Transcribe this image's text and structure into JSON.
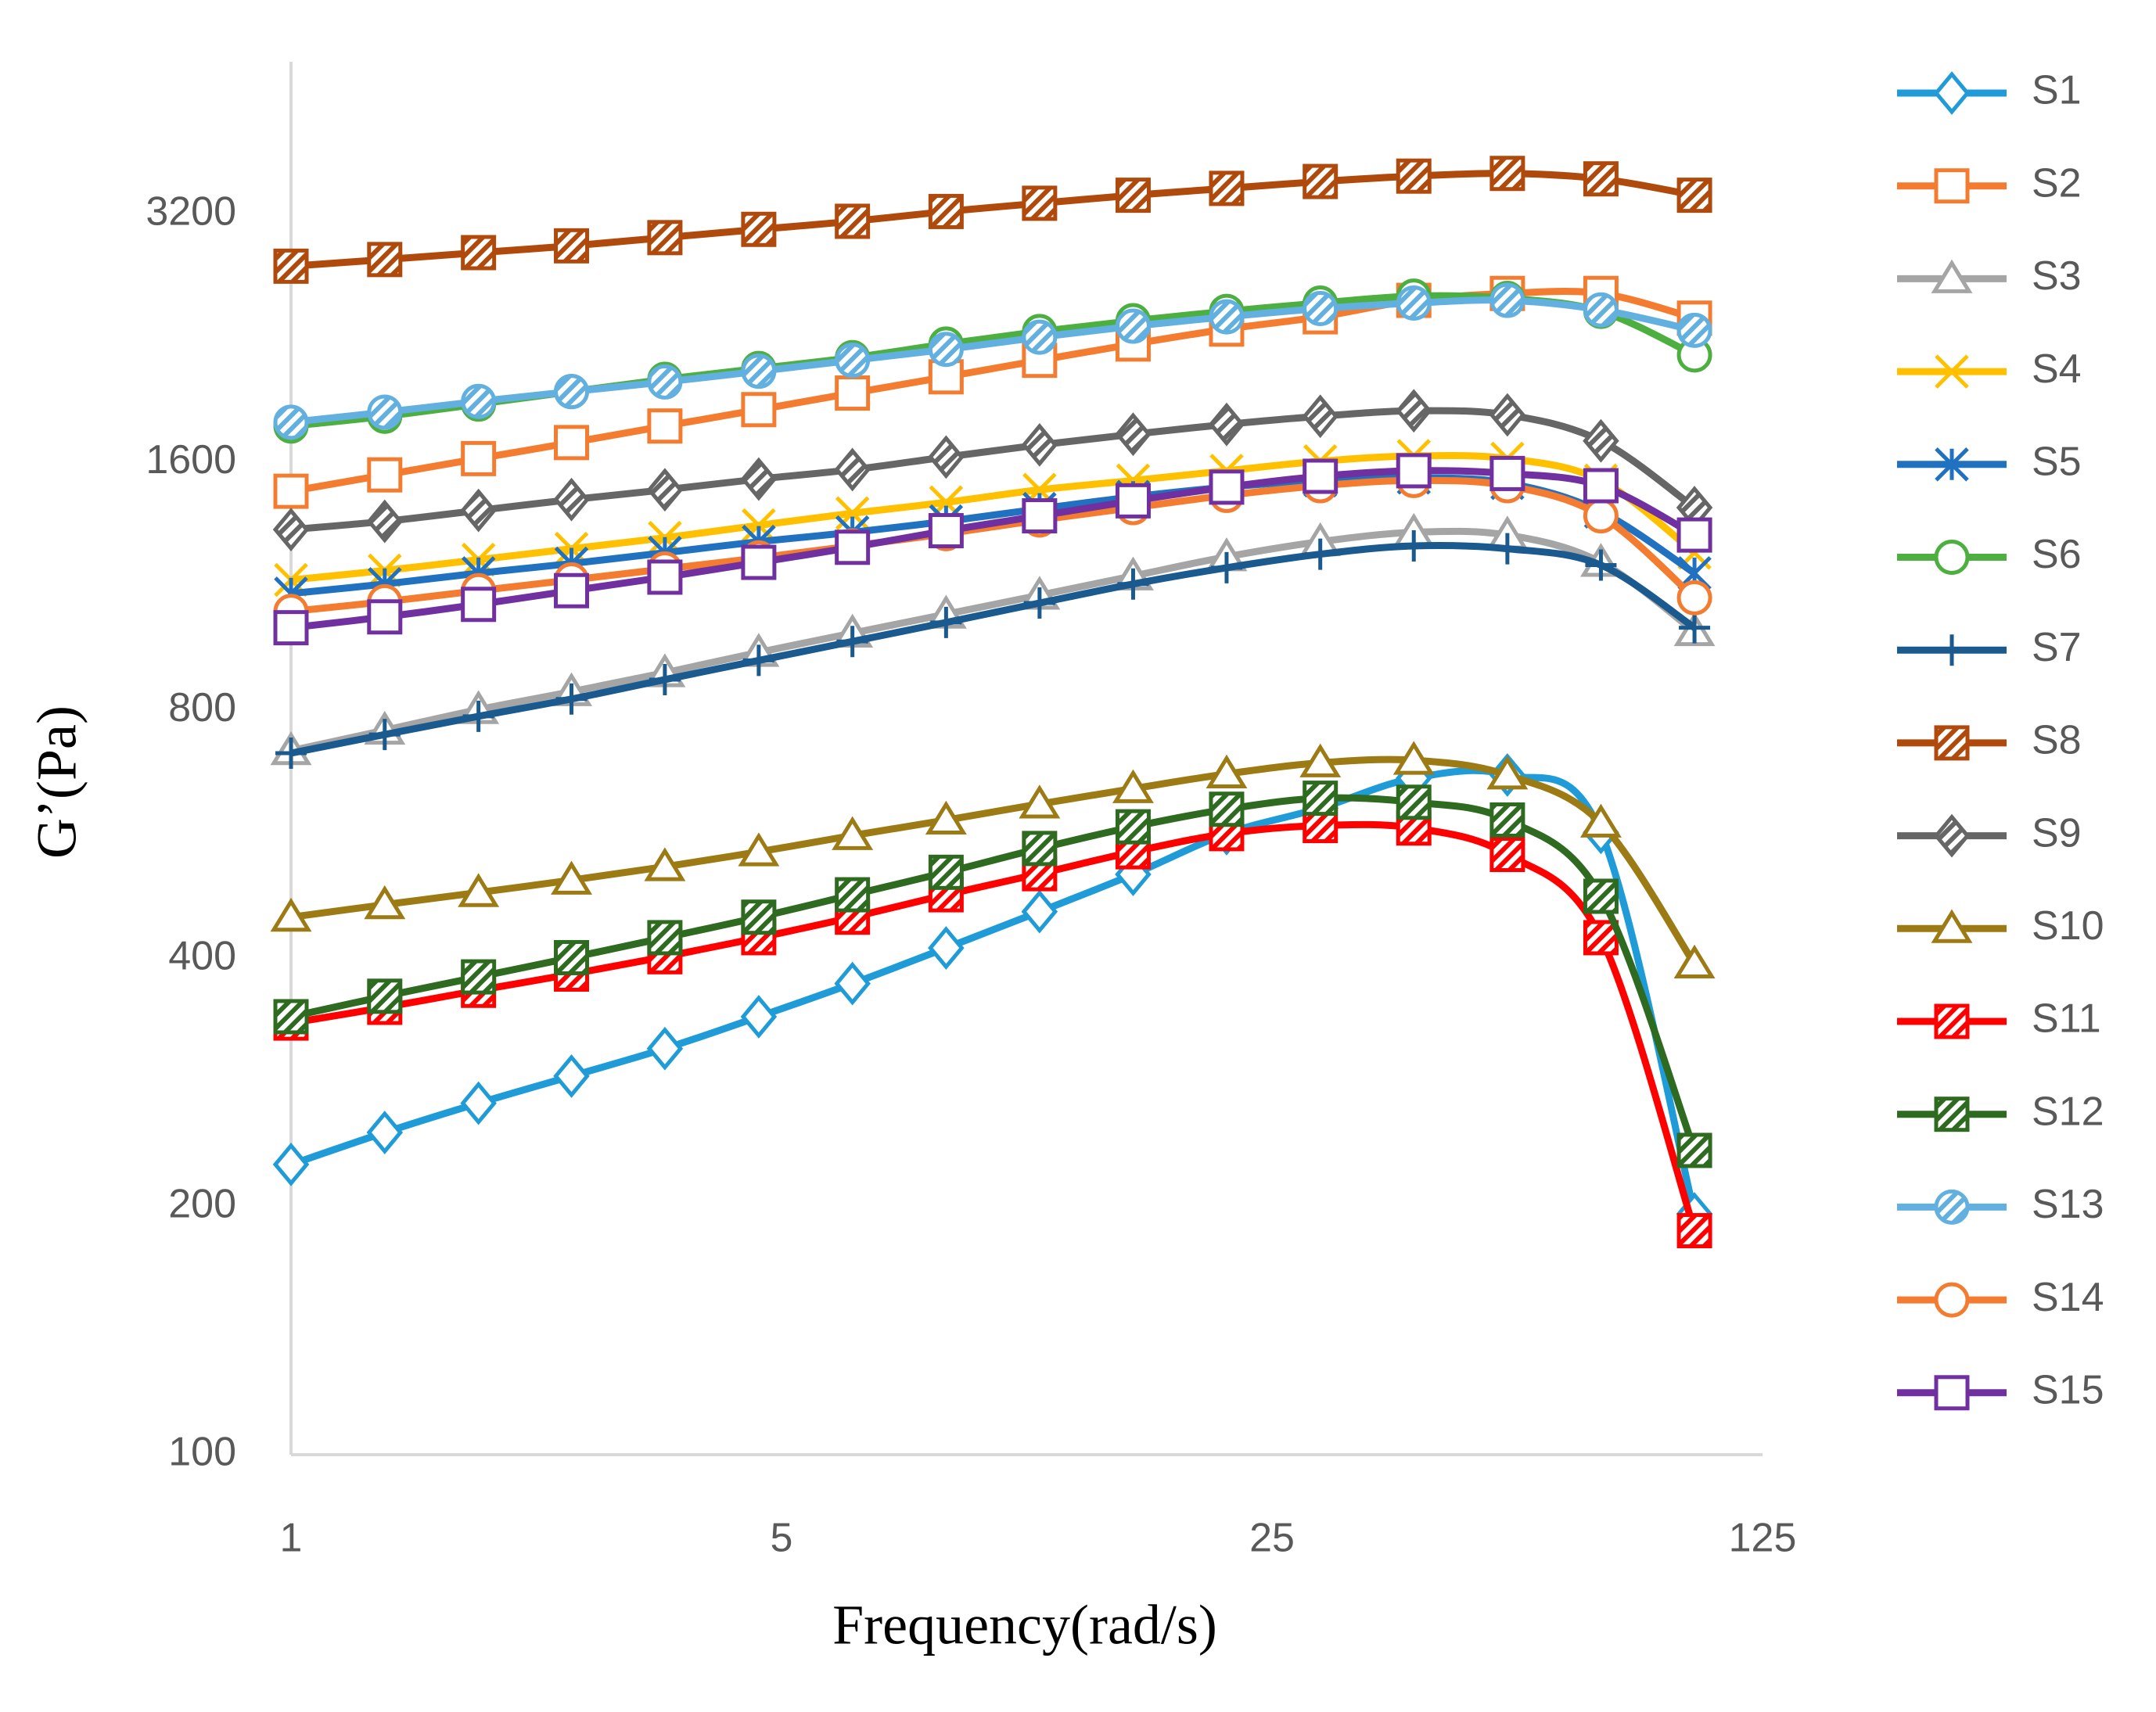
{
  "chart_data": {
    "type": "line",
    "xlabel": "Frequency(rad/s)",
    "ylabel": "G’(Pa)",
    "x": [
      1,
      1.36,
      1.85,
      2.51,
      3.41,
      4.64,
      6.31,
      8.58,
      11.66,
      15.85,
      21.54,
      29.29,
      39.81,
      54.12,
      73.56,
      100
    ],
    "xlim": [
      1,
      125
    ],
    "xticks": [
      1,
      5,
      25,
      125
    ],
    "xscale": "log",
    "ylim": [
      100,
      4900
    ],
    "yticks": [
      100,
      200,
      400,
      800,
      1600,
      3200
    ],
    "yscale": "log",
    "grid": false,
    "legend": "right",
    "series": [
      {
        "name": "S1",
        "color": "#1f9bd7",
        "marker": "diamond",
        "fill": "open",
        "values": [
          225,
          246,
          267,
          288,
          311,
          340,
          373,
          412,
          456,
          506,
          567,
          609,
          662,
          668,
          569,
          196
        ]
      },
      {
        "name": "S2",
        "color": "#f47c30",
        "marker": "square",
        "fill": "open",
        "values": [
          1476,
          1545,
          1617,
          1691,
          1771,
          1854,
          1942,
          2032,
          2128,
          2227,
          2322,
          2403,
          2516,
          2565,
          2565,
          2394
        ]
      },
      {
        "name": "S3",
        "color": "#a5a5a5",
        "marker": "triangle",
        "fill": "open",
        "values": [
          715,
          757,
          802,
          843,
          889,
          941,
          993,
          1047,
          1104,
          1165,
          1229,
          1282,
          1316,
          1306,
          1210,
          997
        ]
      },
      {
        "name": "S4",
        "color": "#ffc000",
        "marker": "x",
        "fill": "open",
        "values": [
          1152,
          1183,
          1219,
          1257,
          1296,
          1342,
          1388,
          1431,
          1482,
          1521,
          1563,
          1605,
          1629,
          1617,
          1521,
          1243
        ]
      },
      {
        "name": "S5",
        "color": "#2171c1",
        "marker": "asterisk",
        "fill": "open",
        "values": [
          1109,
          1139,
          1174,
          1206,
          1243,
          1282,
          1316,
          1357,
          1405,
          1453,
          1493,
          1521,
          1533,
          1510,
          1394,
          1174
        ]
      },
      {
        "name": "S6",
        "color": "#4caf3f",
        "marker": "circle",
        "fill": "open",
        "values": [
          1771,
          1820,
          1883,
          1950,
          2018,
          2080,
          2144,
          2227,
          2306,
          2377,
          2440,
          2497,
          2546,
          2530,
          2440,
          2160
        ]
      },
      {
        "name": "S7",
        "color": "#1a5a8e",
        "marker": "plus",
        "fill": "open",
        "values": [
          710,
          748,
          787,
          826,
          872,
          920,
          970,
          1023,
          1080,
          1139,
          1192,
          1238,
          1267,
          1257,
          1201,
          1008
        ]
      },
      {
        "name": "S8",
        "color": "#b04a0c",
        "marker": "square",
        "fill": "hatch",
        "values": [
          2768,
          2820,
          2875,
          2930,
          2998,
          3068,
          3138,
          3225,
          3300,
          3375,
          3440,
          3507,
          3560,
          3587,
          3533,
          3375
        ]
      },
      {
        "name": "S9",
        "color": "#666666",
        "marker": "diamond",
        "fill": "hatch",
        "values": [
          1326,
          1357,
          1399,
          1442,
          1482,
          1527,
          1568,
          1624,
          1680,
          1731,
          1779,
          1820,
          1848,
          1827,
          1699,
          1410
        ]
      },
      {
        "name": "S10",
        "color": "#9c7a14",
        "marker": "triangle",
        "fill": "open",
        "values": [
          449,
          465,
          481,
          498,
          517,
          539,
          564,
          589,
          616,
          643,
          670,
          691,
          696,
          668,
          584,
          394
        ]
      },
      {
        "name": "S11",
        "color": "#ff0000",
        "marker": "square",
        "fill": "hatch",
        "values": [
          334,
          349,
          366,
          383,
          402,
          424,
          449,
          478,
          507,
          539,
          567,
          580,
          576,
          535,
          424,
          187
        ]
      },
      {
        "name": "S12",
        "color": "#2e6b20",
        "marker": "square",
        "fill": "hatch",
        "values": [
          340,
          360,
          380,
          401,
          424,
          449,
          478,
          509,
          544,
          578,
          607,
          626,
          619,
          589,
          476,
          234
        ]
      },
      {
        "name": "S13",
        "color": "#62b0e0",
        "marker": "circle",
        "fill": "hatch",
        "values": [
          1790,
          1841,
          1897,
          1950,
          2003,
          2064,
          2128,
          2194,
          2270,
          2341,
          2403,
          2459,
          2497,
          2516,
          2450,
          2314
        ]
      },
      {
        "name": "S14",
        "color": "#f47c30",
        "marker": "circle",
        "fill": "open",
        "values": [
          1055,
          1084,
          1118,
          1152,
          1188,
          1225,
          1267,
          1311,
          1362,
          1410,
          1459,
          1499,
          1521,
          1499,
          1378,
          1096
        ]
      },
      {
        "name": "S15",
        "color": "#7030a0",
        "marker": "square",
        "fill": "open",
        "values": [
          1008,
          1039,
          1076,
          1118,
          1161,
          1210,
          1262,
          1322,
          1378,
          1437,
          1493,
          1539,
          1563,
          1551,
          1499,
          1306
        ]
      }
    ]
  }
}
